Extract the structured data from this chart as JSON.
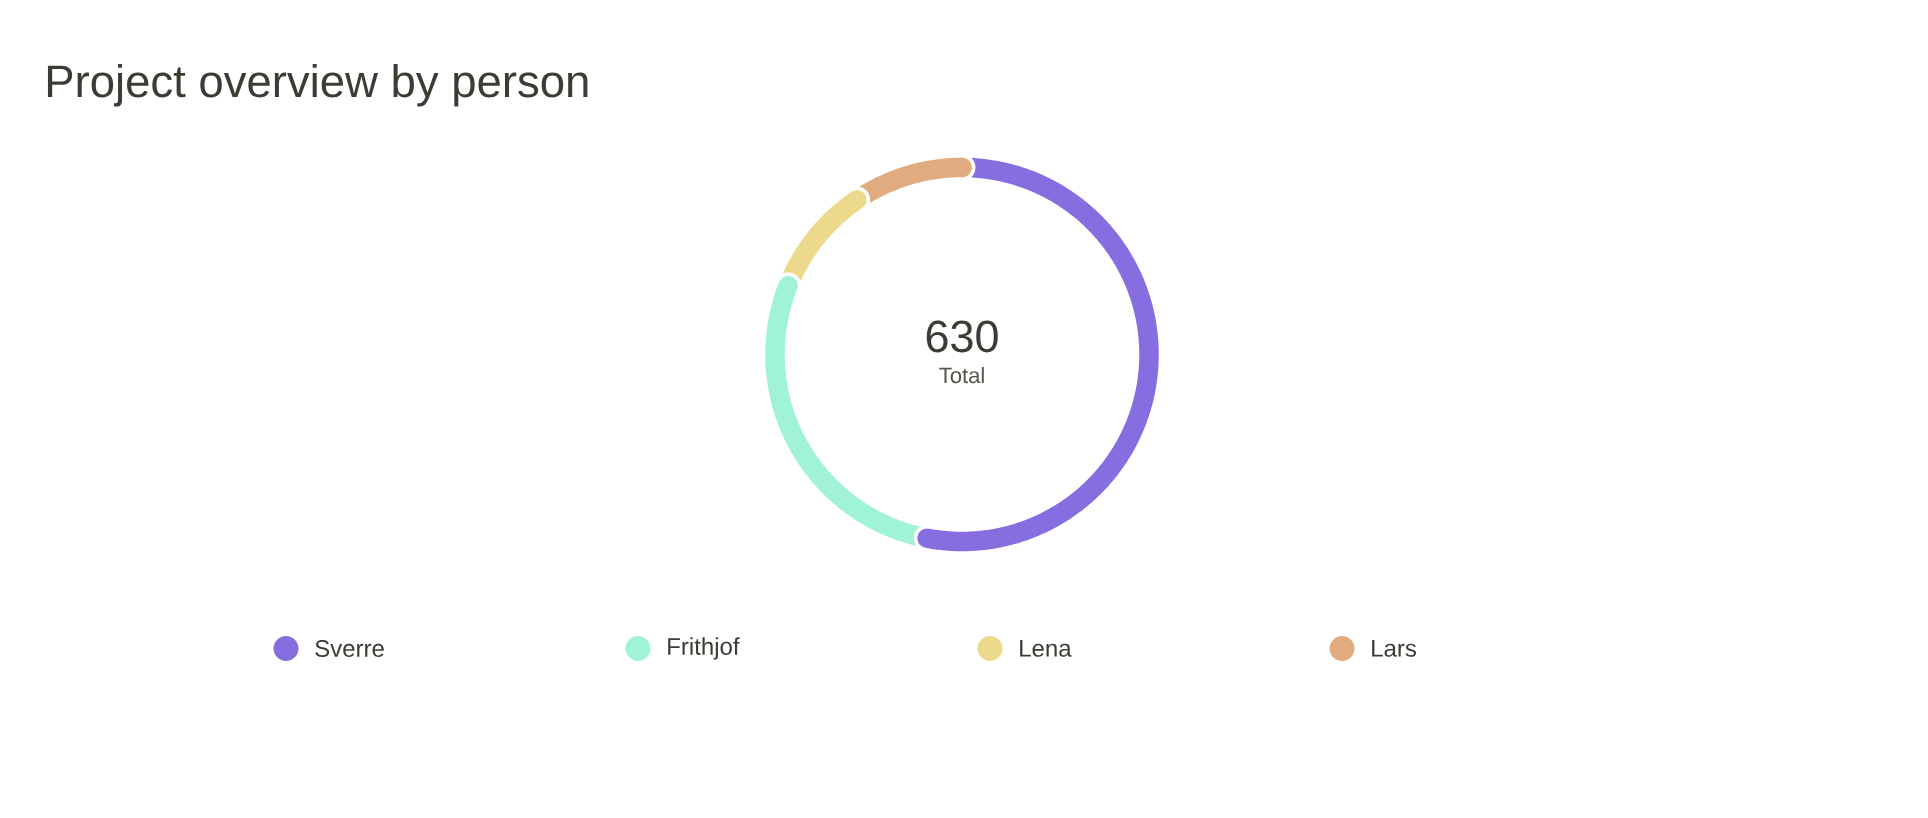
{
  "chart_data": {
    "type": "donut",
    "title": "Project overview by person",
    "categories": [
      "Sverre",
      "Frithjof",
      "Lena",
      "Lars"
    ],
    "values": [
      53,
      28,
      9.5,
      9.5
    ],
    "colors": [
      "#866ee0",
      "#a0f3d7",
      "#ecd98b",
      "#dfab7f"
    ],
    "legend": "bottom",
    "annotations": [
      "630",
      "Total"
    ]
  }
}
